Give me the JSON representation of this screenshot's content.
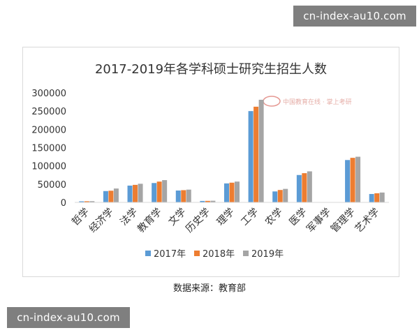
{
  "watermark": {
    "text": "cn-index-au10.com"
  },
  "source": "数据来源：教育部",
  "chart_data": {
    "type": "bar",
    "title": "2017-2019年各学科硕士研究生招生人数",
    "xlabel": "",
    "ylabel": "",
    "categories": [
      "哲学",
      "经济学",
      "法学",
      "教育学",
      "文学",
      "历史学",
      "理学",
      "工学",
      "农学",
      "医学",
      "军事学",
      "管理学",
      "艺术学"
    ],
    "series": [
      {
        "name": "2017年",
        "color": "#5b9bd5",
        "values": [
          3000,
          31000,
          46000,
          53000,
          32500,
          4000,
          52000,
          250000,
          30000,
          75000,
          0,
          116000,
          23000
        ]
      },
      {
        "name": "2018年",
        "color": "#ed7d31",
        "values": [
          3200,
          32000,
          48000,
          57000,
          33500,
          4200,
          54000,
          262000,
          34000,
          80000,
          0,
          122000,
          25000
        ]
      },
      {
        "name": "2019年",
        "color": "#a5a5a5",
        "values": [
          3400,
          38000,
          51000,
          61000,
          35000,
          4500,
          57000,
          281000,
          37000,
          85000,
          0,
          125000,
          27000
        ]
      }
    ],
    "yticks": [
      "0",
      "50000",
      "100000",
      "150000",
      "200000",
      "250000",
      "300000"
    ],
    "ylim": [
      0,
      300000
    ],
    "grid": false,
    "legend": "bottom",
    "logo_text": "中国教育在线 · 掌上考研"
  }
}
